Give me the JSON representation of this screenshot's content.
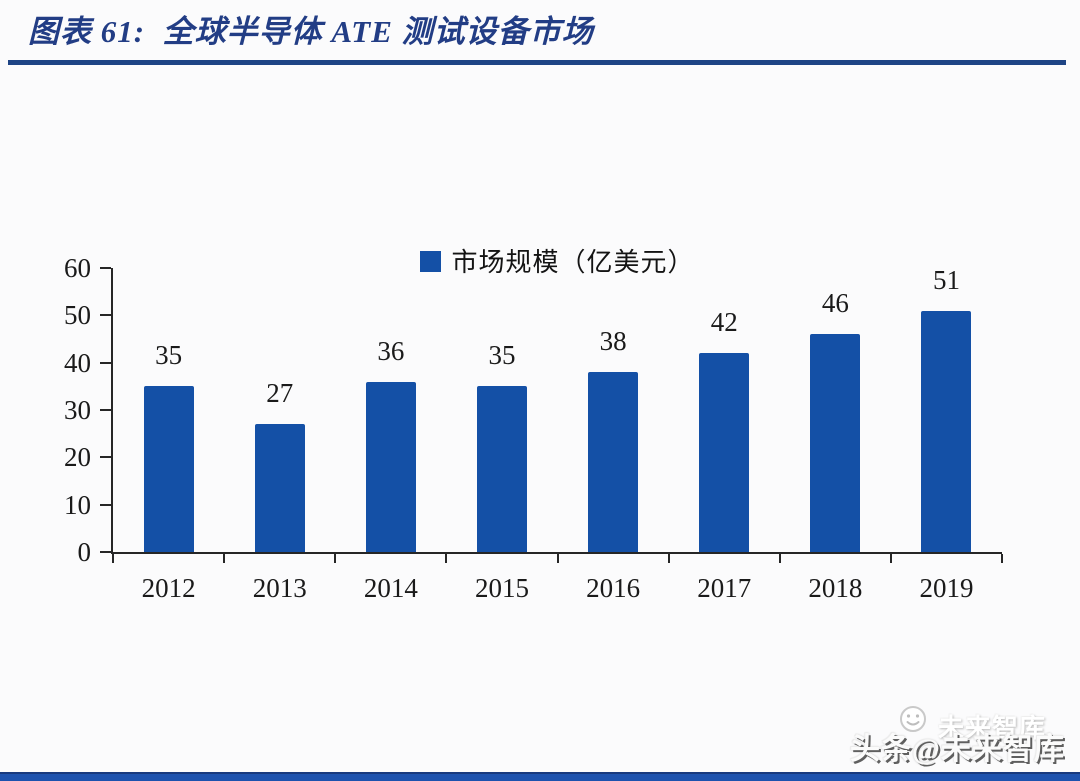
{
  "page": {
    "title": "图表 61:  全球半导体 ATE 测试设备市场",
    "watermark": {
      "main": "头条@未来智库",
      "ghost": "未来智库"
    }
  },
  "colors": {
    "title_navy": "#223d85",
    "rule_navy": "#1e4485",
    "bar_blue": "#1450a6",
    "axis_black": "#262626",
    "label_black": "#1a1a1a",
    "bottom_bar_blue": "#1d52ae",
    "background": "#fbfbfc"
  },
  "chart_data": {
    "type": "bar",
    "title": "",
    "legend": "市场规模（亿美元）",
    "legend_position": "top-center",
    "categories": [
      "2012",
      "2013",
      "2014",
      "2015",
      "2016",
      "2017",
      "2018",
      "2019"
    ],
    "values": [
      35,
      27,
      36,
      35,
      38,
      42,
      46,
      51
    ],
    "xlabel": "",
    "ylabel": "",
    "ylim": [
      0,
      60
    ],
    "yticks": [
      0,
      10,
      20,
      30,
      40,
      50,
      60
    ],
    "grid": false,
    "bar_color": "#1450a6"
  }
}
